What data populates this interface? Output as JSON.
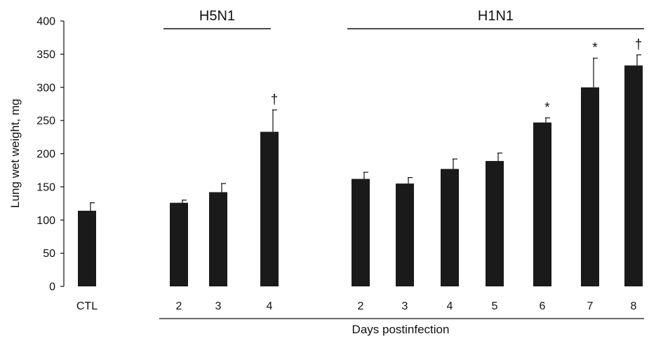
{
  "chart_data": {
    "type": "bar",
    "title": "",
    "ylabel": "Lung wet weight, mg",
    "xlabel": "Days postinfection",
    "ylim": [
      0,
      400
    ],
    "yticks": [
      0,
      50,
      100,
      150,
      200,
      250,
      300,
      350,
      400
    ],
    "grid": false,
    "legend": "none",
    "bar_color": "#1a1a1a",
    "groups": [
      {
        "label": "",
        "categories": [
          "CTL"
        ]
      },
      {
        "label": "H5N1",
        "categories": [
          "2",
          "3",
          "4"
        ]
      },
      {
        "label": "H1N1",
        "categories": [
          "2",
          "3",
          "4",
          "5",
          "6",
          "7",
          "8"
        ]
      }
    ],
    "categories": [
      "CTL",
      "2",
      "3",
      "4",
      "2",
      "3",
      "4",
      "5",
      "6",
      "7",
      "8"
    ],
    "values": [
      114,
      126,
      142,
      233,
      162,
      155,
      177,
      189,
      247,
      300,
      333
    ],
    "errors": [
      12,
      4,
      13,
      33,
      10,
      9,
      15,
      12,
      7,
      44,
      16
    ],
    "annotations": [
      "",
      "",
      "",
      "†",
      "",
      "",
      "",
      "",
      "*",
      "*",
      "†"
    ]
  }
}
